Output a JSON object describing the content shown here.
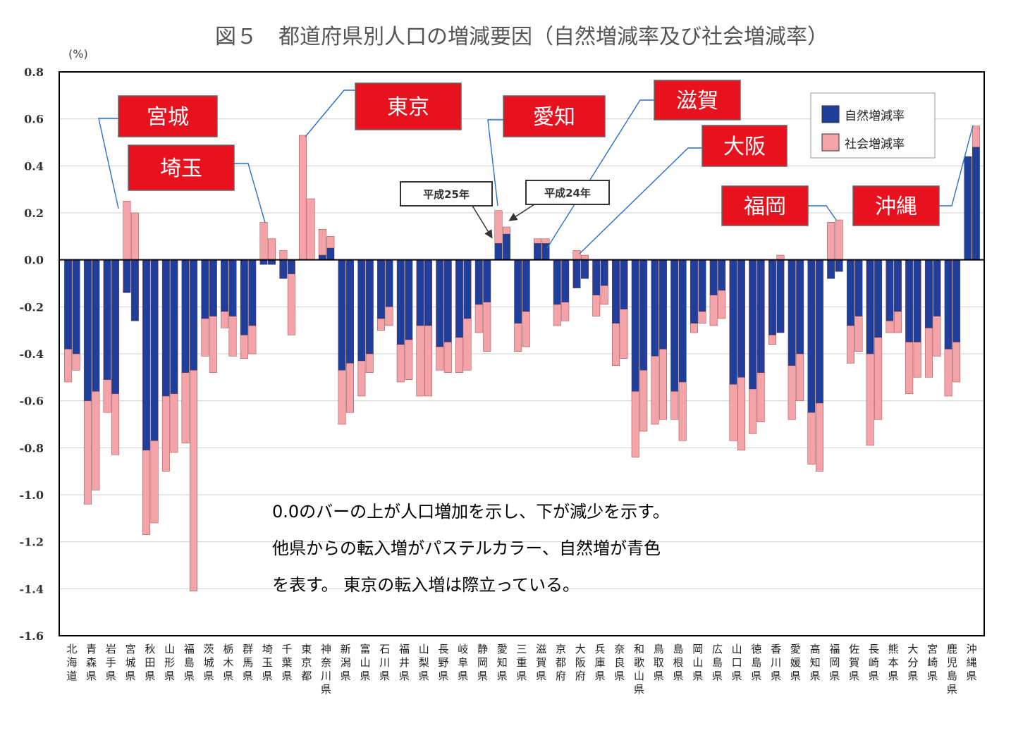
{
  "chart_data": {
    "type": "bar",
    "title": "図５　都道府県別人口の増減要因（自然増減率及び社会増減率）",
    "ylabel": "(%)",
    "ylim": [
      -1.6,
      0.8
    ],
    "yticks": [
      "0.8",
      "0.6",
      "0.4",
      "0.2",
      "0.0",
      "-0.2",
      "-0.4",
      "-0.6",
      "-0.8",
      "-1.0",
      "-1.2",
      "-1.4",
      "-1.6"
    ],
    "grid": true,
    "legend_position": "top-right",
    "series": [
      {
        "name": "自然増減率",
        "color": "#1f3f9a"
      },
      {
        "name": "社会増減率",
        "color": "#f4a3a8"
      }
    ],
    "bar_years": [
      "平成25年",
      "平成24年"
    ],
    "categories": [
      "北海道",
      "青森県",
      "岩手県",
      "宮城県",
      "秋田県",
      "山形県",
      "福島県",
      "茨城県",
      "栃木県",
      "群馬県",
      "埼玉県",
      "千葉県",
      "東京都",
      "神奈川県",
      "新潟県",
      "富山県",
      "石川県",
      "福井県",
      "山梨県",
      "長野県",
      "岐阜県",
      "静岡県",
      "愛知県",
      "三重県",
      "滋賀県",
      "京都府",
      "大阪府",
      "兵庫県",
      "奈良県",
      "和歌山県",
      "鳥取県",
      "島根県",
      "岡山県",
      "広島県",
      "山口県",
      "徳島県",
      "香川県",
      "愛媛県",
      "高知県",
      "福岡県",
      "佐賀県",
      "長崎県",
      "熊本県",
      "大分県",
      "宮崎県",
      "鹿児島県",
      "沖縄県"
    ],
    "data": [
      [
        [
          -0.38,
          -0.14
        ],
        [
          -0.4,
          -0.07
        ]
      ],
      [
        [
          -0.6,
          -0.44
        ],
        [
          -0.56,
          -0.42
        ]
      ],
      [
        [
          -0.51,
          -0.14
        ],
        [
          -0.57,
          -0.26
        ]
      ],
      [
        [
          -0.14,
          0.25
        ],
        [
          -0.26,
          0.2
        ]
      ],
      [
        [
          -0.81,
          -0.36
        ],
        [
          -0.77,
          -0.35
        ]
      ],
      [
        [
          -0.58,
          -0.32
        ],
        [
          -0.57,
          -0.25
        ]
      ],
      [
        [
          -0.48,
          -0.3
        ],
        [
          -0.47,
          -0.94
        ]
      ],
      [
        [
          -0.25,
          -0.16
        ],
        [
          -0.24,
          -0.24
        ]
      ],
      [
        [
          -0.22,
          -0.07
        ],
        [
          -0.24,
          -0.17
        ]
      ],
      [
        [
          -0.32,
          -0.1
        ],
        [
          -0.28,
          -0.12
        ]
      ],
      [
        [
          -0.02,
          0.16
        ],
        [
          -0.02,
          0.09
        ]
      ],
      [
        [
          -0.08,
          0.04
        ],
        [
          -0.06,
          -0.26
        ]
      ],
      [
        [
          0.0,
          0.53
        ],
        [
          0.0,
          0.26
        ]
      ],
      [
        [
          0.02,
          0.11
        ],
        [
          0.05,
          0.05
        ]
      ],
      [
        [
          -0.47,
          -0.23
        ],
        [
          -0.44,
          -0.21
        ]
      ],
      [
        [
          -0.43,
          -0.15
        ],
        [
          -0.4,
          -0.08
        ]
      ],
      [
        [
          -0.25,
          -0.05
        ],
        [
          -0.2,
          -0.08
        ]
      ],
      [
        [
          -0.36,
          -0.16
        ],
        [
          -0.34,
          -0.17
        ]
      ],
      [
        [
          -0.28,
          -0.3
        ],
        [
          -0.28,
          -0.3
        ]
      ],
      [
        [
          -0.37,
          -0.1
        ],
        [
          -0.35,
          -0.13
        ]
      ],
      [
        [
          -0.33,
          -0.15
        ],
        [
          -0.25,
          -0.22
        ]
      ],
      [
        [
          -0.19,
          -0.12
        ],
        [
          -0.18,
          -0.21
        ]
      ],
      [
        [
          0.07,
          0.14
        ],
        [
          0.11,
          0.03
        ]
      ],
      [
        [
          -0.27,
          -0.12
        ],
        [
          -0.22,
          -0.15
        ]
      ],
      [
        [
          0.07,
          0.02
        ],
        [
          0.07,
          0.02
        ]
      ],
      [
        [
          -0.19,
          -0.09
        ],
        [
          -0.18,
          -0.08
        ]
      ],
      [
        [
          -0.12,
          0.04
        ],
        [
          -0.08,
          0.02
        ]
      ],
      [
        [
          -0.15,
          -0.09
        ],
        [
          -0.11,
          -0.08
        ]
      ],
      [
        [
          -0.27,
          -0.18
        ],
        [
          -0.21,
          -0.21
        ]
      ],
      [
        [
          -0.56,
          -0.28
        ],
        [
          -0.47,
          -0.26
        ]
      ],
      [
        [
          -0.41,
          -0.29
        ],
        [
          -0.38,
          -0.3
        ]
      ],
      [
        [
          -0.56,
          -0.12
        ],
        [
          -0.52,
          -0.25
        ]
      ],
      [
        [
          -0.27,
          -0.04
        ],
        [
          -0.22,
          -0.05
        ]
      ],
      [
        [
          -0.15,
          -0.13
        ],
        [
          -0.13,
          -0.12
        ]
      ],
      [
        [
          -0.53,
          -0.24
        ],
        [
          -0.5,
          -0.31
        ]
      ],
      [
        [
          -0.55,
          -0.19
        ],
        [
          -0.48,
          -0.21
        ]
      ],
      [
        [
          -0.32,
          -0.04
        ],
        [
          -0.31,
          0.02
        ]
      ],
      [
        [
          -0.45,
          -0.23
        ],
        [
          -0.4,
          -0.2
        ]
      ],
      [
        [
          -0.65,
          -0.22
        ],
        [
          -0.61,
          -0.29
        ]
      ],
      [
        [
          -0.08,
          0.16
        ],
        [
          -0.05,
          0.17
        ]
      ],
      [
        [
          -0.28,
          -0.16
        ],
        [
          -0.24,
          -0.15
        ]
      ],
      [
        [
          -0.4,
          -0.39
        ],
        [
          -0.33,
          -0.35
        ]
      ],
      [
        [
          -0.26,
          -0.05
        ],
        [
          -0.22,
          -0.09
        ]
      ],
      [
        [
          -0.35,
          -0.22
        ],
        [
          -0.35,
          -0.15
        ]
      ],
      [
        [
          -0.29,
          -0.21
        ],
        [
          -0.24,
          -0.17
        ]
      ],
      [
        [
          -0.38,
          -0.2
        ],
        [
          -0.35,
          -0.17
        ]
      ],
      [
        [
          0.44,
          0.0
        ],
        [
          0.48,
          0.09
        ]
      ]
    ],
    "callouts": [
      "宮城",
      "埼玉",
      "東京",
      "愛知",
      "滋賀",
      "大阪",
      "福岡",
      "沖縄"
    ],
    "note_lines": [
      "0.0のバーの上が人口増加を示し、下が減少を示す。",
      "他県からの転入増がパステルカラー、自然増が青色",
      "を表す。 東京の転入増は際立っている。"
    ]
  }
}
